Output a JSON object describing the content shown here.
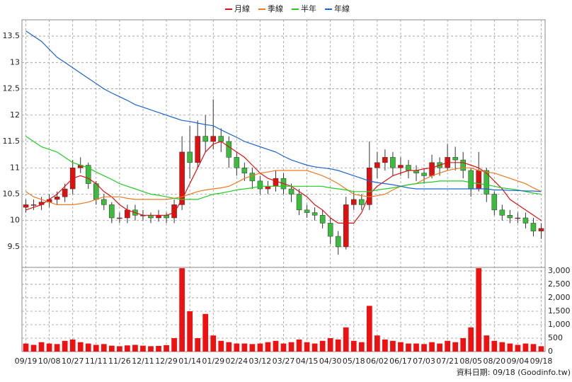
{
  "chart_data": {
    "type": "candlestick",
    "legend": "top",
    "source": "資料日期: 09/18 (Goodinfo.tw)",
    "up_color": "#e01010",
    "down_color": "#3cbc3c",
    "volume_color": "#ee1111",
    "grid": true,
    "categories": [
      "09/19",
      null,
      null,
      "10/08",
      null,
      null,
      "10/27",
      null,
      null,
      "11/11",
      null,
      null,
      "11/26",
      null,
      null,
      "12/11",
      null,
      null,
      "12/29",
      null,
      null,
      "01/14",
      null,
      null,
      "01/29",
      null,
      null,
      "02/24",
      null,
      null,
      "03/12",
      null,
      null,
      "03/27",
      null,
      null,
      "04/15",
      null,
      null,
      "04/30",
      null,
      null,
      "05/18",
      null,
      null,
      "06/02",
      null,
      null,
      "06/17",
      null,
      null,
      "07/03",
      null,
      null,
      "07/21",
      null,
      null,
      "08/05",
      null,
      null,
      "08/20",
      null,
      null,
      "09/04",
      null,
      null,
      "09/18"
    ],
    "open": [
      10.25,
      10.3,
      10.3,
      10.35,
      10.4,
      10.45,
      10.6,
      11.0,
      11.05,
      10.7,
      10.4,
      10.3,
      10.05,
      10.05,
      10.2,
      10.1,
      10.1,
      10.05,
      10.1,
      10.05,
      10.3,
      11.3,
      11.1,
      11.6,
      11.5,
      11.6,
      11.5,
      11.2,
      11.0,
      10.9,
      10.75,
      10.6,
      10.65,
      10.8,
      10.6,
      10.5,
      10.2,
      10.15,
      10.1,
      9.95,
      9.7,
      9.5,
      10.3,
      10.4,
      10.3,
      11.0,
      11.1,
      11.2,
      11.0,
      11.05,
      10.95,
      10.9,
      10.85,
      11.1,
      11.0,
      11.2,
      11.15,
      10.95,
      10.6,
      10.95,
      10.5,
      10.2,
      10.1,
      10.05,
      10.05,
      9.95,
      9.8
    ],
    "high": [
      10.4,
      10.4,
      10.45,
      10.5,
      10.55,
      10.7,
      11.15,
      11.2,
      11.1,
      10.75,
      10.5,
      10.35,
      10.15,
      10.3,
      10.3,
      10.2,
      10.15,
      10.2,
      10.15,
      10.4,
      11.6,
      11.8,
      11.9,
      12.0,
      12.3,
      11.75,
      11.6,
      11.3,
      11.1,
      11.0,
      10.85,
      10.75,
      10.95,
      10.9,
      10.7,
      10.6,
      10.3,
      10.25,
      10.2,
      10.05,
      9.8,
      10.45,
      10.55,
      10.5,
      11.5,
      11.3,
      11.35,
      11.3,
      11.2,
      11.15,
      11.05,
      11.0,
      11.25,
      11.2,
      11.45,
      11.4,
      11.3,
      11.0,
      11.3,
      11.0,
      10.55,
      10.3,
      10.2,
      10.15,
      10.15,
      10.05,
      9.95
    ],
    "low": [
      10.15,
      10.2,
      10.2,
      10.25,
      10.3,
      10.35,
      10.5,
      10.9,
      10.6,
      10.3,
      10.2,
      9.95,
      9.95,
      9.95,
      10.0,
      10.0,
      9.95,
      9.98,
      9.95,
      9.95,
      10.2,
      10.8,
      11.0,
      11.3,
      11.35,
      11.3,
      11.0,
      10.85,
      10.75,
      10.6,
      10.5,
      10.5,
      10.55,
      10.5,
      10.35,
      10.1,
      10.05,
      10.0,
      9.85,
      9.55,
      9.35,
      9.45,
      10.2,
      10.2,
      10.2,
      10.8,
      10.95,
      10.85,
      10.85,
      10.8,
      10.75,
      10.7,
      10.8,
      10.85,
      10.95,
      10.95,
      10.8,
      10.45,
      10.55,
      10.35,
      10.1,
      10.0,
      9.95,
      9.95,
      9.85,
      9.7,
      9.65
    ],
    "close": [
      10.3,
      10.3,
      10.35,
      10.4,
      10.45,
      10.6,
      11.0,
      11.05,
      10.7,
      10.4,
      10.3,
      10.05,
      10.05,
      10.2,
      10.1,
      10.1,
      10.05,
      10.1,
      10.05,
      10.3,
      11.3,
      11.1,
      11.6,
      11.5,
      11.6,
      11.5,
      11.2,
      11.0,
      10.9,
      10.75,
      10.6,
      10.65,
      10.8,
      10.6,
      10.5,
      10.2,
      10.15,
      10.1,
      9.95,
      9.7,
      9.5,
      10.3,
      10.4,
      10.3,
      11.0,
      11.1,
      11.2,
      11.0,
      11.05,
      10.95,
      10.9,
      10.85,
      11.1,
      11.0,
      11.2,
      11.15,
      10.95,
      10.6,
      10.95,
      10.5,
      10.2,
      10.1,
      10.05,
      10.05,
      9.95,
      9.8,
      9.85
    ],
    "volume": [
      300,
      250,
      350,
      300,
      280,
      400,
      450,
      350,
      300,
      250,
      280,
      220,
      200,
      230,
      250,
      220,
      200,
      210,
      240,
      500,
      3100,
      1500,
      500,
      1400,
      600,
      400,
      350,
      300,
      300,
      280,
      300,
      350,
      400,
      300,
      350,
      450,
      350,
      300,
      400,
      500,
      450,
      900,
      400,
      350,
      1700,
      600,
      450,
      400,
      350,
      300,
      300,
      280,
      350,
      300,
      400,
      350,
      500,
      900,
      3100,
      600,
      400,
      350,
      300,
      250,
      300,
      280,
      200
    ],
    "series": [
      {
        "name": "月線",
        "color": "#e01010",
        "values": [
          10.2,
          10.25,
          10.3,
          10.4,
          10.5,
          10.65,
          10.8,
          10.85,
          10.8,
          10.7,
          10.55,
          10.45,
          10.3,
          10.2,
          10.15,
          10.1,
          10.1,
          10.1,
          10.1,
          10.15,
          10.4,
          10.7,
          11.0,
          11.3,
          11.45,
          11.5,
          11.4,
          11.3,
          11.2,
          11.05,
          10.9,
          10.8,
          10.75,
          10.7,
          10.65,
          10.55,
          10.45,
          10.3,
          10.2,
          10.05,
          9.95,
          9.95,
          9.95,
          10.15,
          10.5,
          10.65,
          10.75,
          10.85,
          10.9,
          10.95,
          10.95,
          10.98,
          11.0,
          11.05,
          11.1,
          11.1,
          11.1,
          11.05,
          11.0,
          10.9,
          10.75,
          10.6,
          10.4,
          10.3,
          10.2,
          10.1,
          10.0
        ]
      },
      {
        "name": "季線",
        "color": "#f07820",
        "values": [
          10.55,
          10.45,
          10.4,
          10.35,
          10.3,
          10.3,
          10.3,
          10.32,
          10.35,
          10.4,
          10.45,
          10.45,
          10.45,
          10.42,
          10.4,
          10.4,
          10.4,
          10.4,
          10.4,
          10.42,
          10.45,
          10.5,
          10.55,
          10.58,
          10.6,
          10.62,
          10.65,
          10.72,
          10.8,
          10.85,
          10.9,
          10.92,
          10.95,
          10.95,
          10.95,
          10.95,
          10.95,
          10.9,
          10.85,
          10.78,
          10.7,
          10.6,
          10.5,
          10.47,
          10.45,
          10.47,
          10.5,
          10.58,
          10.65,
          10.68,
          10.7,
          10.78,
          10.85,
          10.9,
          10.95,
          10.98,
          11.0,
          11.0,
          10.95,
          10.92,
          10.9,
          10.85,
          10.8,
          10.75,
          10.7,
          10.62,
          10.55
        ]
      },
      {
        "name": "半年",
        "color": "#22cc22",
        "values": [
          11.6,
          11.5,
          11.4,
          11.35,
          11.3,
          11.2,
          11.1,
          11.05,
          11.0,
          10.92,
          10.85,
          10.78,
          10.7,
          10.65,
          10.6,
          10.55,
          10.5,
          10.48,
          10.45,
          10.42,
          10.4,
          10.4,
          10.4,
          10.45,
          10.5,
          10.52,
          10.55,
          10.58,
          10.6,
          10.62,
          10.65,
          10.65,
          10.65,
          10.65,
          10.65,
          10.65,
          10.65,
          10.65,
          10.65,
          10.62,
          10.6,
          10.58,
          10.55,
          10.55,
          10.55,
          10.58,
          10.6,
          10.62,
          10.65,
          10.68,
          10.7,
          10.72,
          10.73,
          10.75,
          10.75,
          10.75,
          10.75,
          10.72,
          10.7,
          10.68,
          10.65,
          10.62,
          10.6,
          10.58,
          10.55,
          10.52,
          10.5
        ]
      },
      {
        "name": "年線",
        "color": "#1a64d0",
        "values": [
          13.6,
          13.5,
          13.4,
          13.25,
          13.1,
          13.0,
          12.9,
          12.8,
          12.7,
          12.6,
          12.5,
          12.42,
          12.35,
          12.28,
          12.2,
          12.15,
          12.1,
          12.05,
          12.0,
          11.95,
          11.9,
          11.88,
          11.85,
          11.82,
          11.8,
          11.72,
          11.65,
          11.58,
          11.5,
          11.45,
          11.4,
          11.35,
          11.3,
          11.22,
          11.15,
          11.1,
          11.05,
          11.02,
          11.0,
          10.98,
          10.95,
          10.9,
          10.85,
          10.8,
          10.75,
          10.72,
          10.7,
          10.68,
          10.65,
          10.62,
          10.6,
          10.6,
          10.6,
          10.6,
          10.6,
          10.6,
          10.6,
          10.6,
          10.6,
          10.6,
          10.58,
          10.58,
          10.57,
          10.57,
          10.56,
          10.56,
          10.55
        ]
      }
    ],
    "ylim": [
      9.11,
      13.81
    ],
    "yticks": [
      9.5,
      10,
      10.5,
      11,
      11.5,
      12,
      12.5,
      13,
      13.5
    ],
    "y2lim": [
      0,
      3130
    ],
    "y2ticks": [
      0,
      500,
      {
        "value": 1000,
        "label": "1,000"
      },
      {
        "value": 1500,
        "label": "1,500"
      },
      {
        "value": 2000,
        "label": "2,000"
      },
      {
        "value": 2500,
        "label": "2,500"
      },
      {
        "value": 3000,
        "label": "3,000"
      }
    ]
  }
}
